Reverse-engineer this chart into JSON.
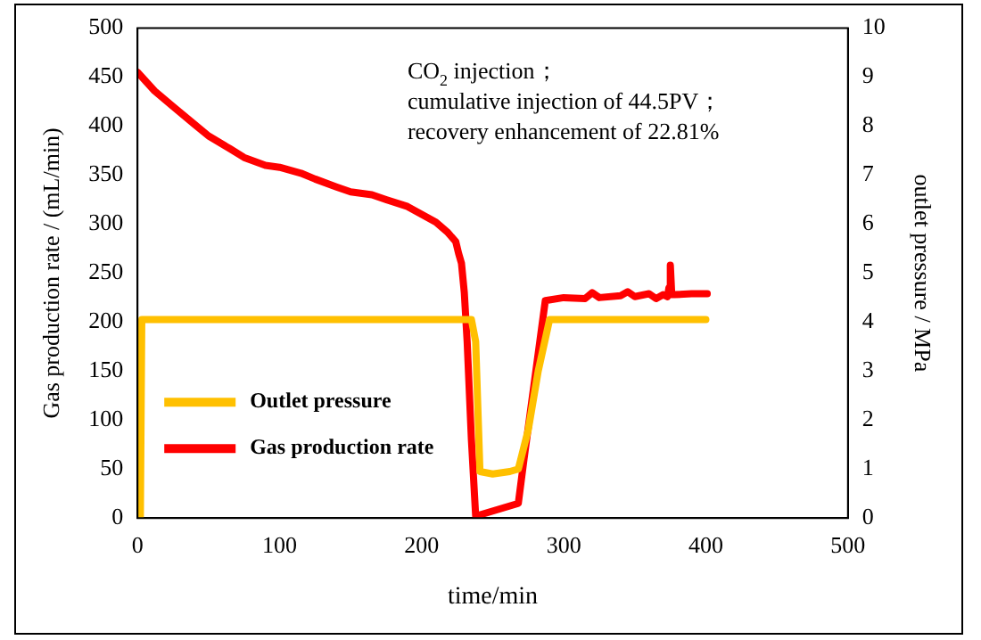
{
  "chart_data": {
    "type": "line",
    "xlabel": "time/min",
    "ylabel": "Gas production rate / (mL/min)",
    "y2label": "outlet pressure / MPa",
    "xlim": [
      0,
      500
    ],
    "xticks": [
      0,
      100,
      200,
      300,
      400,
      500
    ],
    "ylim": [
      0,
      500
    ],
    "yticks": [
      0,
      50,
      100,
      150,
      200,
      250,
      300,
      350,
      400,
      450,
      500
    ],
    "y2lim": [
      0,
      10
    ],
    "y2ticks": [
      0,
      1,
      2,
      3,
      4,
      5,
      6,
      7,
      8,
      9,
      10
    ],
    "grid": false,
    "legend": "bottom left",
    "marker": "none",
    "line_style": "solid",
    "annotations": [
      "CO$_{2}$ injection；",
      "cumulative injection of 44.5PV；",
      "recovery enhancement of 22.81%"
    ],
    "series": [
      {
        "name": "Outlet pressure",
        "color": "#ffc000",
        "axis": "y2",
        "x": [
          2,
          3,
          50,
          100,
          150,
          200,
          235,
          238,
          241,
          250,
          262,
          268,
          275,
          282,
          290,
          300,
          350,
          400
        ],
        "values": [
          0,
          4.05,
          4.05,
          4.05,
          4.05,
          4.05,
          4.05,
          3.6,
          0.95,
          0.9,
          0.95,
          1.0,
          1.8,
          3.0,
          4.05,
          4.05,
          4.05,
          4.05
        ]
      },
      {
        "name": "Gas production rate",
        "color": "#ff0000",
        "x": [
          0,
          12,
          25,
          40,
          50,
          65,
          75,
          90,
          100,
          115,
          125,
          140,
          150,
          165,
          175,
          190,
          200,
          210,
          218,
          224,
          226,
          228,
          230,
          232,
          235,
          238,
          268,
          272,
          287,
          300,
          315,
          320,
          325,
          340,
          345,
          350,
          360,
          365,
          370,
          373,
          374,
          375,
          376,
          378,
          390,
          401
        ],
        "values": [
          455,
          436,
          420,
          402,
          390,
          377,
          368,
          360,
          358,
          352,
          346,
          338,
          333,
          330,
          325,
          318,
          310,
          302,
          292,
          282,
          270,
          260,
          230,
          180,
          80,
          2,
          15,
          60,
          222,
          225,
          224,
          230,
          225,
          227,
          231,
          226,
          229,
          224,
          228,
          226,
          235,
          258,
          228,
          228,
          229,
          229
        ]
      }
    ]
  }
}
